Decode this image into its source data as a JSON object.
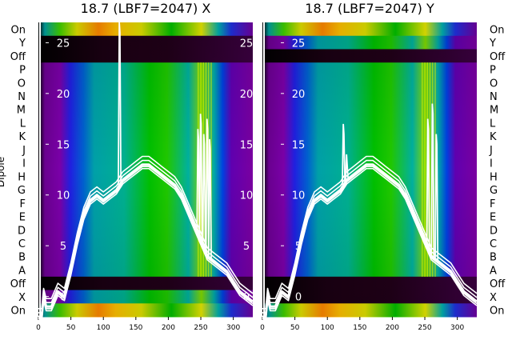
{
  "chart_data": {
    "type": "heatmap",
    "ylabel": "Dipole",
    "row_labels": [
      "On",
      "Y",
      "Off",
      "P",
      "O",
      "N",
      "M",
      "L",
      "K",
      "J",
      "I",
      "H",
      "G",
      "F",
      "E",
      "D",
      "C",
      "B",
      "A",
      "Off",
      "X",
      "On"
    ],
    "x_ticks": [
      0,
      50,
      100,
      150,
      200,
      250,
      300
    ],
    "xlim": [
      0,
      330
    ],
    "overlay_yticks": [
      0,
      5,
      10,
      15,
      20,
      25
    ],
    "overlay_ylim": [
      -2,
      27
    ],
    "overlay_tick_side": [
      "left",
      "right"
    ],
    "colorscale": [
      "#000000",
      "#7a00a0",
      "#1414e0",
      "#00a8a8",
      "#00c000",
      "#e8e800",
      "#ff8800",
      "#ffffff"
    ],
    "panels": [
      {
        "title": "18.7 (LBF7=2047) X",
        "dark_rows": [
          "Y",
          "Off",
          "Off"
        ],
        "spectrum": [
          [
            0,
            -2.0
          ],
          [
            5,
            -2.0
          ],
          [
            8,
            0.0
          ],
          [
            12,
            -1.0
          ],
          [
            20,
            -1.0
          ],
          [
            30,
            0.5
          ],
          [
            40,
            0.0
          ],
          [
            50,
            2.5
          ],
          [
            60,
            5.5
          ],
          [
            70,
            8.0
          ],
          [
            80,
            9.5
          ],
          [
            90,
            10.0
          ],
          [
            100,
            9.5
          ],
          [
            110,
            10.0
          ],
          [
            120,
            10.5
          ],
          [
            125,
            11.0
          ],
          [
            130,
            11.5
          ],
          [
            140,
            12.0
          ],
          [
            150,
            12.5
          ],
          [
            160,
            13.0
          ],
          [
            170,
            13.0
          ],
          [
            180,
            12.5
          ],
          [
            190,
            12.0
          ],
          [
            200,
            11.5
          ],
          [
            210,
            11.0
          ],
          [
            220,
            10.0
          ],
          [
            230,
            8.5
          ],
          [
            240,
            7.0
          ],
          [
            250,
            5.5
          ],
          [
            260,
            4.0
          ],
          [
            270,
            3.5
          ],
          [
            280,
            3.0
          ],
          [
            290,
            2.5
          ],
          [
            300,
            1.5
          ],
          [
            310,
            0.5
          ],
          [
            320,
            0.0
          ],
          [
            330,
            -0.5
          ]
        ],
        "spikes": [
          {
            "x": 125,
            "y": 27.0
          },
          {
            "x": 246,
            "y": 16.5
          },
          {
            "x": 250,
            "y": 18.0
          },
          {
            "x": 255,
            "y": 16.0
          },
          {
            "x": 260,
            "y": 17.5
          },
          {
            "x": 264,
            "y": 15.5
          }
        ]
      },
      {
        "title": "18.7 (LBF7=2047) Y",
        "dark_rows": [
          "Off",
          "Off",
          "X"
        ],
        "spectrum": [
          [
            0,
            -2.0
          ],
          [
            5,
            -2.0
          ],
          [
            8,
            0.0
          ],
          [
            12,
            -1.0
          ],
          [
            20,
            -1.0
          ],
          [
            30,
            0.5
          ],
          [
            40,
            0.0
          ],
          [
            50,
            2.5
          ],
          [
            60,
            5.5
          ],
          [
            70,
            8.0
          ],
          [
            80,
            9.5
          ],
          [
            90,
            10.0
          ],
          [
            100,
            9.5
          ],
          [
            110,
            10.0
          ],
          [
            120,
            10.5
          ],
          [
            125,
            11.0
          ],
          [
            130,
            11.5
          ],
          [
            140,
            12.0
          ],
          [
            150,
            12.5
          ],
          [
            160,
            13.0
          ],
          [
            170,
            13.0
          ],
          [
            180,
            12.5
          ],
          [
            190,
            12.0
          ],
          [
            200,
            11.5
          ],
          [
            210,
            11.0
          ],
          [
            220,
            10.0
          ],
          [
            230,
            8.5
          ],
          [
            240,
            7.0
          ],
          [
            250,
            5.5
          ],
          [
            260,
            4.0
          ],
          [
            270,
            3.5
          ],
          [
            280,
            3.0
          ],
          [
            290,
            2.5
          ],
          [
            300,
            1.5
          ],
          [
            310,
            0.5
          ],
          [
            320,
            0.0
          ],
          [
            330,
            -0.5
          ]
        ],
        "spikes": [
          {
            "x": 125,
            "y": 17.0
          },
          {
            "x": 130,
            "y": 14.0
          },
          {
            "x": 255,
            "y": 17.5
          },
          {
            "x": 262,
            "y": 19.0
          },
          {
            "x": 268,
            "y": 16.0
          }
        ]
      }
    ]
  }
}
